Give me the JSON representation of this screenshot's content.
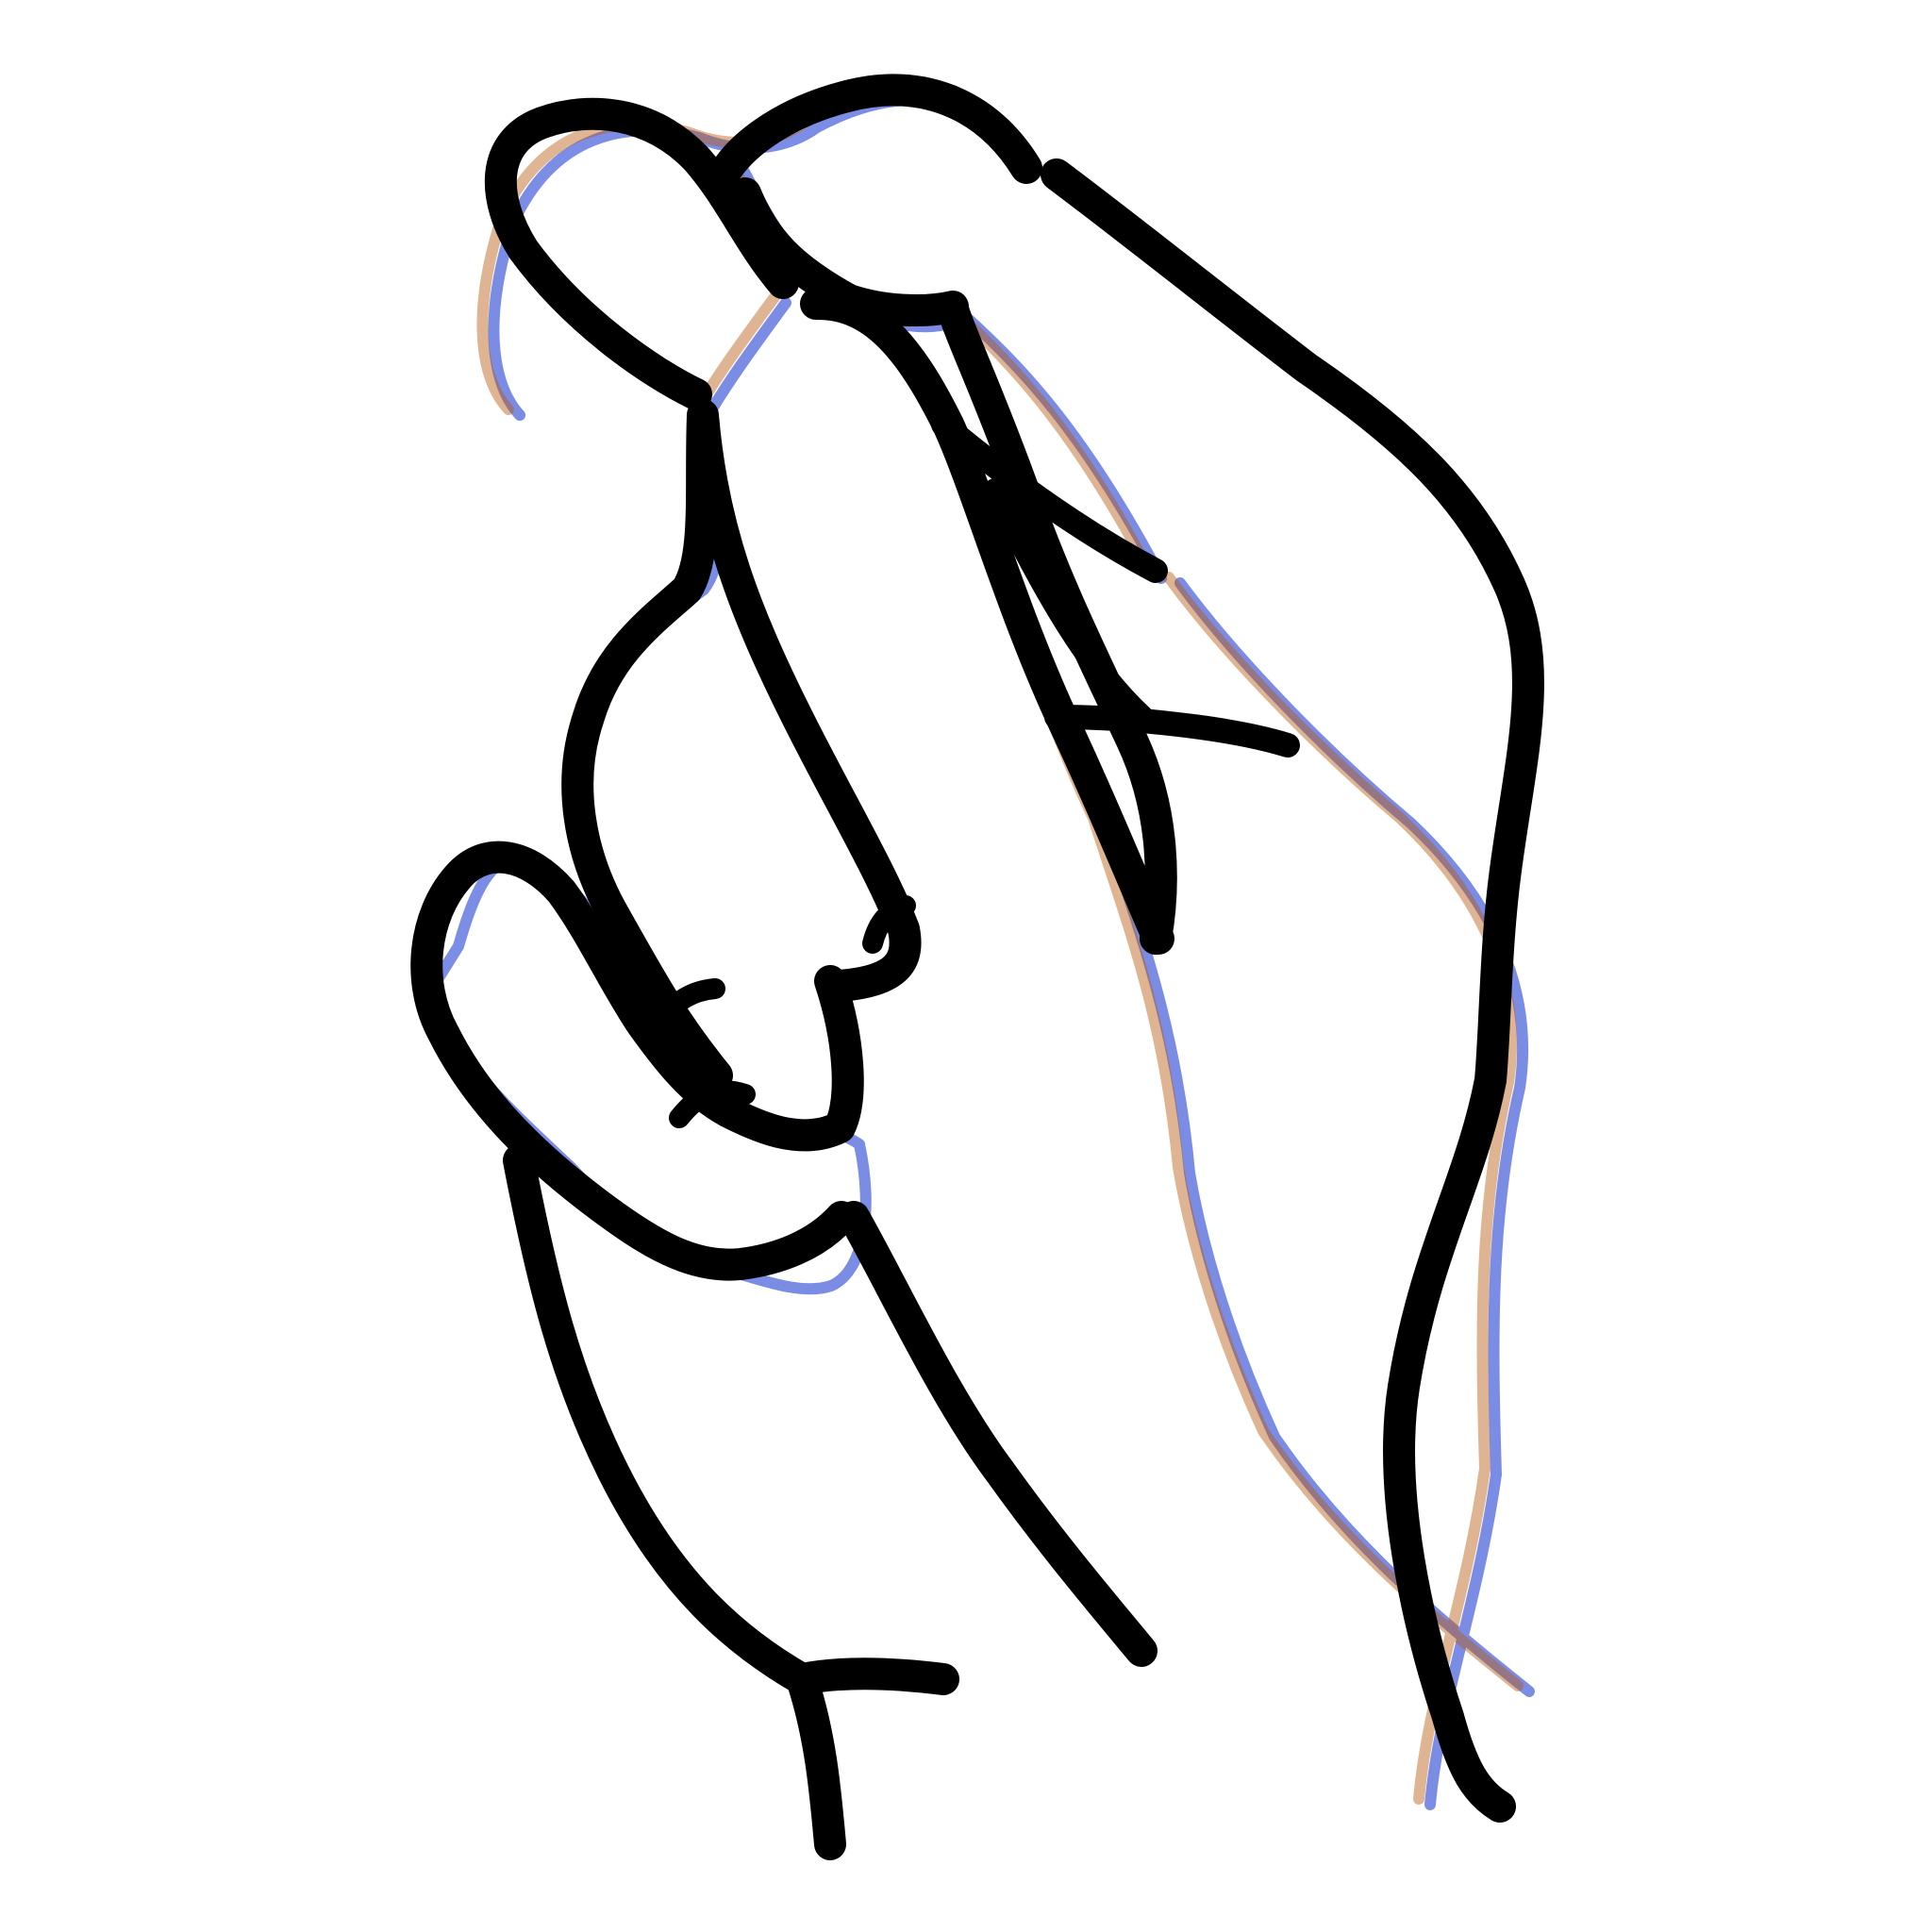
{
  "image": {
    "subject": "crossed-fingers-hand-icon",
    "colors": {
      "background": "#ffffff",
      "line": "#000000",
      "blue_fringe": "#1030d0",
      "orange_fringe": "#b85a10"
    }
  }
}
